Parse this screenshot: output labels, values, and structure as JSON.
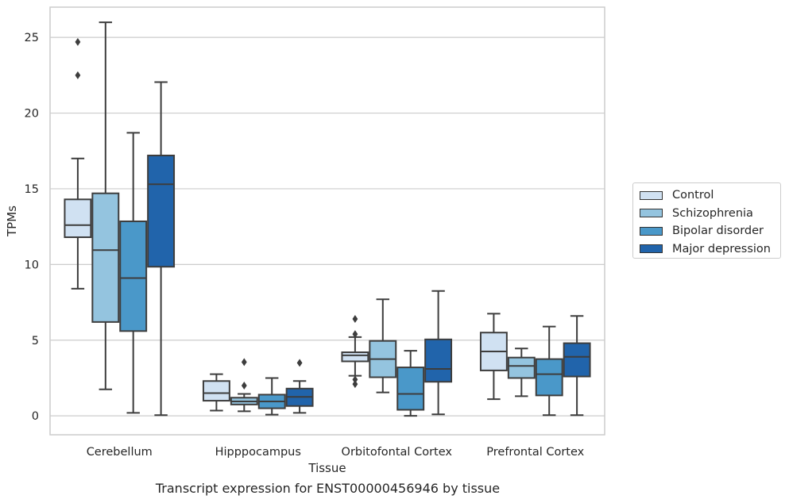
{
  "caption": "Transcript expression for ENST00000456946 by tissue",
  "chart_data": {
    "type": "box",
    "xlabel": "Tissue",
    "ylabel": "TPMs",
    "ylim": [
      -1.25,
      27.0
    ],
    "yticks": [
      0,
      5,
      10,
      15,
      20,
      25
    ],
    "grid": "horizontal",
    "legend_position": "right",
    "categories": [
      "Cerebellum",
      "Hipppocampus",
      "Orbitofontal Cortex",
      "Prefrontal Cortex"
    ],
    "series": [
      {
        "name": "Control",
        "color": "#d0e1f2",
        "boxes": [
          {
            "whislo": 8.4,
            "q1": 11.8,
            "med": 12.6,
            "q3": 14.3,
            "whishi": 17.0,
            "fliers": [
              22.5,
              24.7
            ]
          },
          {
            "whislo": 0.35,
            "q1": 1.0,
            "med": 1.5,
            "q3": 2.3,
            "whishi": 2.75,
            "fliers": []
          },
          {
            "whislo": 2.65,
            "q1": 3.6,
            "med": 4.0,
            "q3": 4.2,
            "whishi": 5.2,
            "fliers": [
              2.1,
              2.4,
              5.4,
              6.4
            ]
          },
          {
            "whislo": 1.1,
            "q1": 3.0,
            "med": 4.25,
            "q3": 5.5,
            "whishi": 6.75,
            "fliers": []
          }
        ]
      },
      {
        "name": "Schizophrenia",
        "color": "#94c4df",
        "boxes": [
          {
            "whislo": 1.75,
            "q1": 6.2,
            "med": 10.95,
            "q3": 14.7,
            "whishi": 26.0,
            "fliers": []
          },
          {
            "whislo": 0.3,
            "q1": 0.75,
            "med": 0.95,
            "q3": 1.2,
            "whishi": 1.45,
            "fliers": [
              2.0,
              3.55
            ]
          },
          {
            "whislo": 1.55,
            "q1": 2.55,
            "med": 3.75,
            "q3": 4.95,
            "whishi": 7.7,
            "fliers": []
          },
          {
            "whislo": 1.3,
            "q1": 2.5,
            "med": 3.3,
            "q3": 3.85,
            "whishi": 4.45,
            "fliers": []
          }
        ]
      },
      {
        "name": "Bipolar disorder",
        "color": "#4a98c9",
        "boxes": [
          {
            "whislo": 0.2,
            "q1": 5.6,
            "med": 9.1,
            "q3": 12.85,
            "whishi": 18.7,
            "fliers": []
          },
          {
            "whislo": 0.08,
            "q1": 0.5,
            "med": 0.95,
            "q3": 1.4,
            "whishi": 2.5,
            "fliers": []
          },
          {
            "whislo": 0.0,
            "q1": 0.4,
            "med": 1.45,
            "q3": 3.2,
            "whishi": 4.3,
            "fliers": []
          },
          {
            "whislo": 0.05,
            "q1": 1.35,
            "med": 2.75,
            "q3": 3.75,
            "whishi": 5.9,
            "fliers": []
          }
        ]
      },
      {
        "name": "Major depression",
        "color": "#2164ab",
        "boxes": [
          {
            "whislo": 0.05,
            "q1": 9.85,
            "med": 15.3,
            "q3": 17.2,
            "whishi": 22.05,
            "fliers": []
          },
          {
            "whislo": 0.2,
            "q1": 0.65,
            "med": 1.25,
            "q3": 1.8,
            "whishi": 2.3,
            "fliers": [
              3.5
            ]
          },
          {
            "whislo": 0.1,
            "q1": 2.25,
            "med": 3.1,
            "q3": 5.05,
            "whishi": 8.25,
            "fliers": []
          },
          {
            "whislo": 0.05,
            "q1": 2.6,
            "med": 3.9,
            "q3": 4.8,
            "whishi": 6.6,
            "fliers": []
          }
        ]
      }
    ]
  }
}
